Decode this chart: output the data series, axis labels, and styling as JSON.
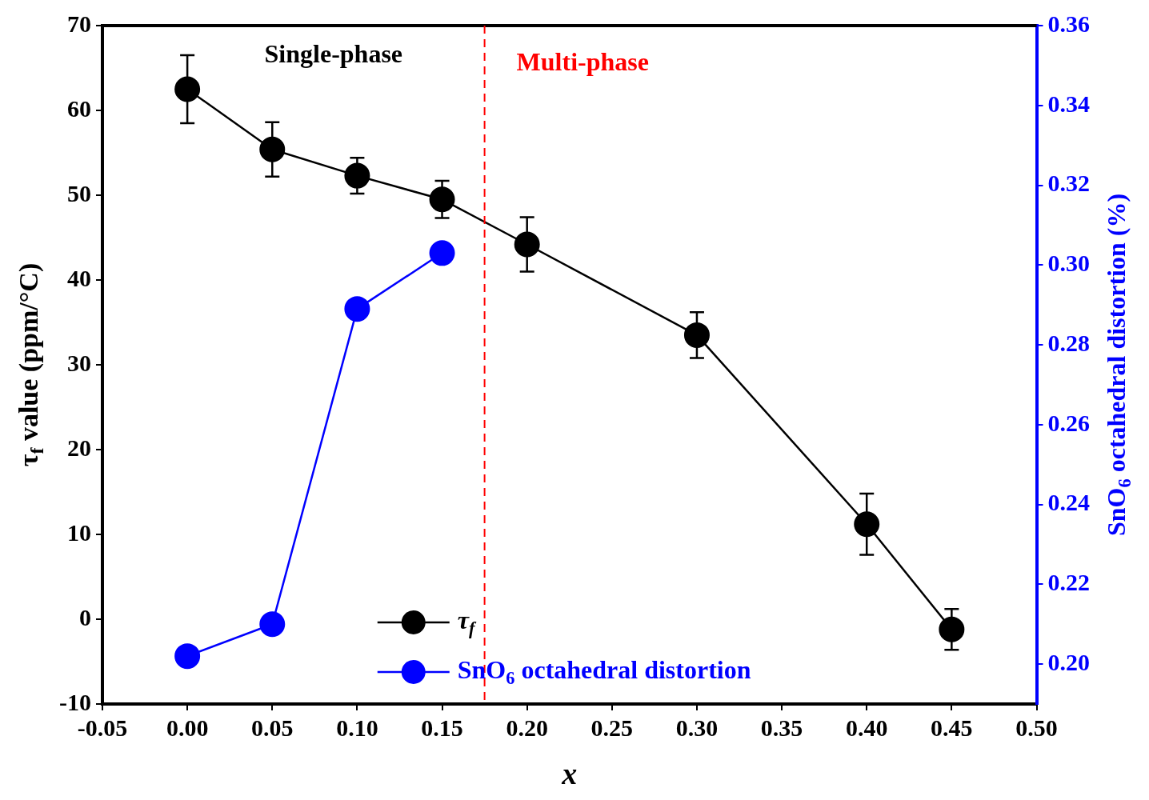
{
  "chart_data": {
    "type": "line",
    "xlabel": "x",
    "ylabel": "τ$_{f}$ value (ppm/°C)",
    "y2label": "SnO$_{6}$ octahedral distortion (%)",
    "x": [
      0,
      0.05,
      0.1,
      0.15,
      0.2,
      0.3,
      0.4,
      0.45
    ],
    "series": [
      {
        "name": "τ$_{f}$",
        "color": "#000000",
        "values": [
          62.5,
          55.4,
          52.3,
          49.5,
          44.2,
          33.5,
          11.2,
          -1.2
        ],
        "errors": [
          4,
          3.2,
          2.1,
          2.2,
          3.2,
          2.7,
          3.6,
          2.4
        ]
      },
      {
        "name": "SnO$_{6}$ octahedral distortion",
        "color": "#0000ff",
        "axis": "y2",
        "x": [
          0,
          0.05,
          0.1,
          0.15
        ],
        "values": [
          0.202,
          0.21,
          0.289,
          0.303
        ]
      }
    ],
    "xlim": [
      -0.05,
      0.5
    ],
    "xticks": [
      {
        "value": -0.05,
        "label": "-0.05"
      },
      {
        "value": 0,
        "label": "0.00"
      },
      {
        "value": 0.05,
        "label": "0.05"
      },
      {
        "value": 0.1,
        "label": "0.10"
      },
      {
        "value": 0.15,
        "label": "0.15"
      },
      {
        "value": 0.2,
        "label": "0.20"
      },
      {
        "value": 0.25,
        "label": "0.25"
      },
      {
        "value": 0.3,
        "label": "0.30"
      },
      {
        "value": 0.35,
        "label": "0.35"
      },
      {
        "value": 0.4,
        "label": "0.40"
      },
      {
        "value": 0.45,
        "label": "0.45"
      },
      {
        "value": 0.5,
        "label": "0.50"
      }
    ],
    "ylim": [
      -10,
      70
    ],
    "yticks": [
      -10,
      0,
      10,
      20,
      30,
      40,
      50,
      60,
      70
    ],
    "y2lim": [
      0.19,
      0.36
    ],
    "y2ticks": [
      {
        "value": 0.2,
        "label": "0.20"
      },
      {
        "value": 0.22,
        "label": "0.22"
      },
      {
        "value": 0.24,
        "label": "0.24"
      },
      {
        "value": 0.26,
        "label": "0.26"
      },
      {
        "value": 0.28,
        "label": "0.28"
      },
      {
        "value": 0.3,
        "label": "0.30"
      },
      {
        "value": 0.32,
        "label": "0.32"
      },
      {
        "value": 0.34,
        "label": "0.34"
      },
      {
        "value": 0.36,
        "label": "0.36"
      }
    ],
    "ref_lines": [
      {
        "axis": "x",
        "value": 0.175,
        "color": "#ff0000",
        "line_style": "dashed"
      }
    ],
    "annotations": [
      "Single-phase",
      "Multi-phase"
    ],
    "legend": "bottom",
    "marker": "circle",
    "grid": false
  }
}
